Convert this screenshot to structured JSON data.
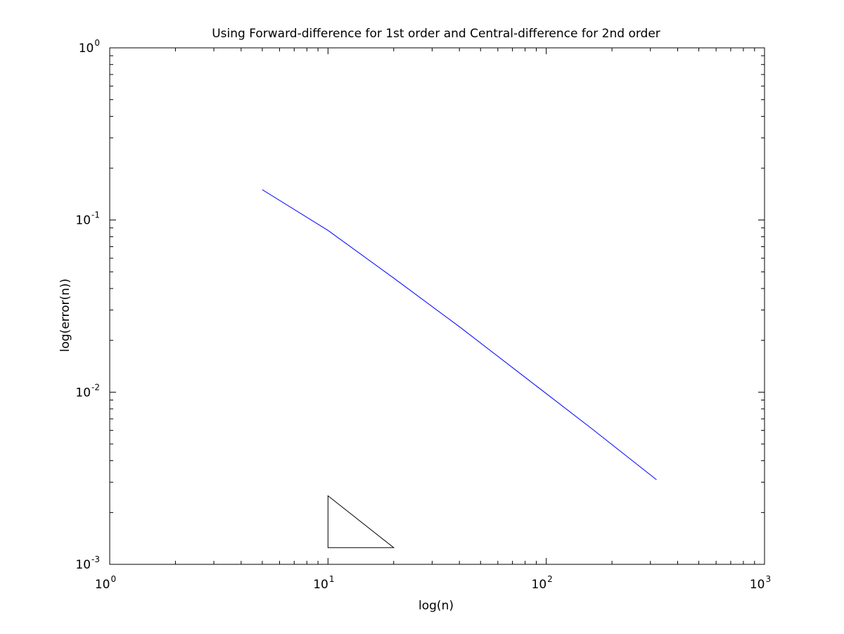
{
  "chart_data": {
    "type": "line",
    "title": "Using Forward-difference for 1st order and Central-difference for 2nd order",
    "xlabel": "log(n)",
    "ylabel": "log(error(n))",
    "xscale": "log",
    "yscale": "log",
    "xlim": [
      1,
      1000
    ],
    "ylim": [
      0.001,
      1
    ],
    "grid": false,
    "x_ticks": [
      {
        "value": 1,
        "base": "10",
        "exp": "0"
      },
      {
        "value": 10,
        "base": "10",
        "exp": "1"
      },
      {
        "value": 100,
        "base": "10",
        "exp": "2"
      },
      {
        "value": 1000,
        "base": "10",
        "exp": "3"
      }
    ],
    "y_ticks": [
      {
        "value": 0.001,
        "base": "10",
        "exp": "-3"
      },
      {
        "value": 0.01,
        "base": "10",
        "exp": "-2"
      },
      {
        "value": 0.1,
        "base": "10",
        "exp": "-1"
      },
      {
        "value": 1,
        "base": "10",
        "exp": "0"
      }
    ],
    "series": [
      {
        "color": "#0000ff",
        "x": [
          5,
          10,
          20,
          40,
          80,
          160,
          320
        ],
        "y": [
          0.15,
          0.087,
          0.046,
          0.024,
          0.0122,
          0.0062,
          0.0031
        ]
      }
    ],
    "annotations": [
      {
        "type": "slope-triangle",
        "color": "#000000",
        "points": [
          [
            10,
            0.0025
          ],
          [
            10,
            0.00125
          ],
          [
            20,
            0.00125
          ]
        ]
      }
    ]
  }
}
